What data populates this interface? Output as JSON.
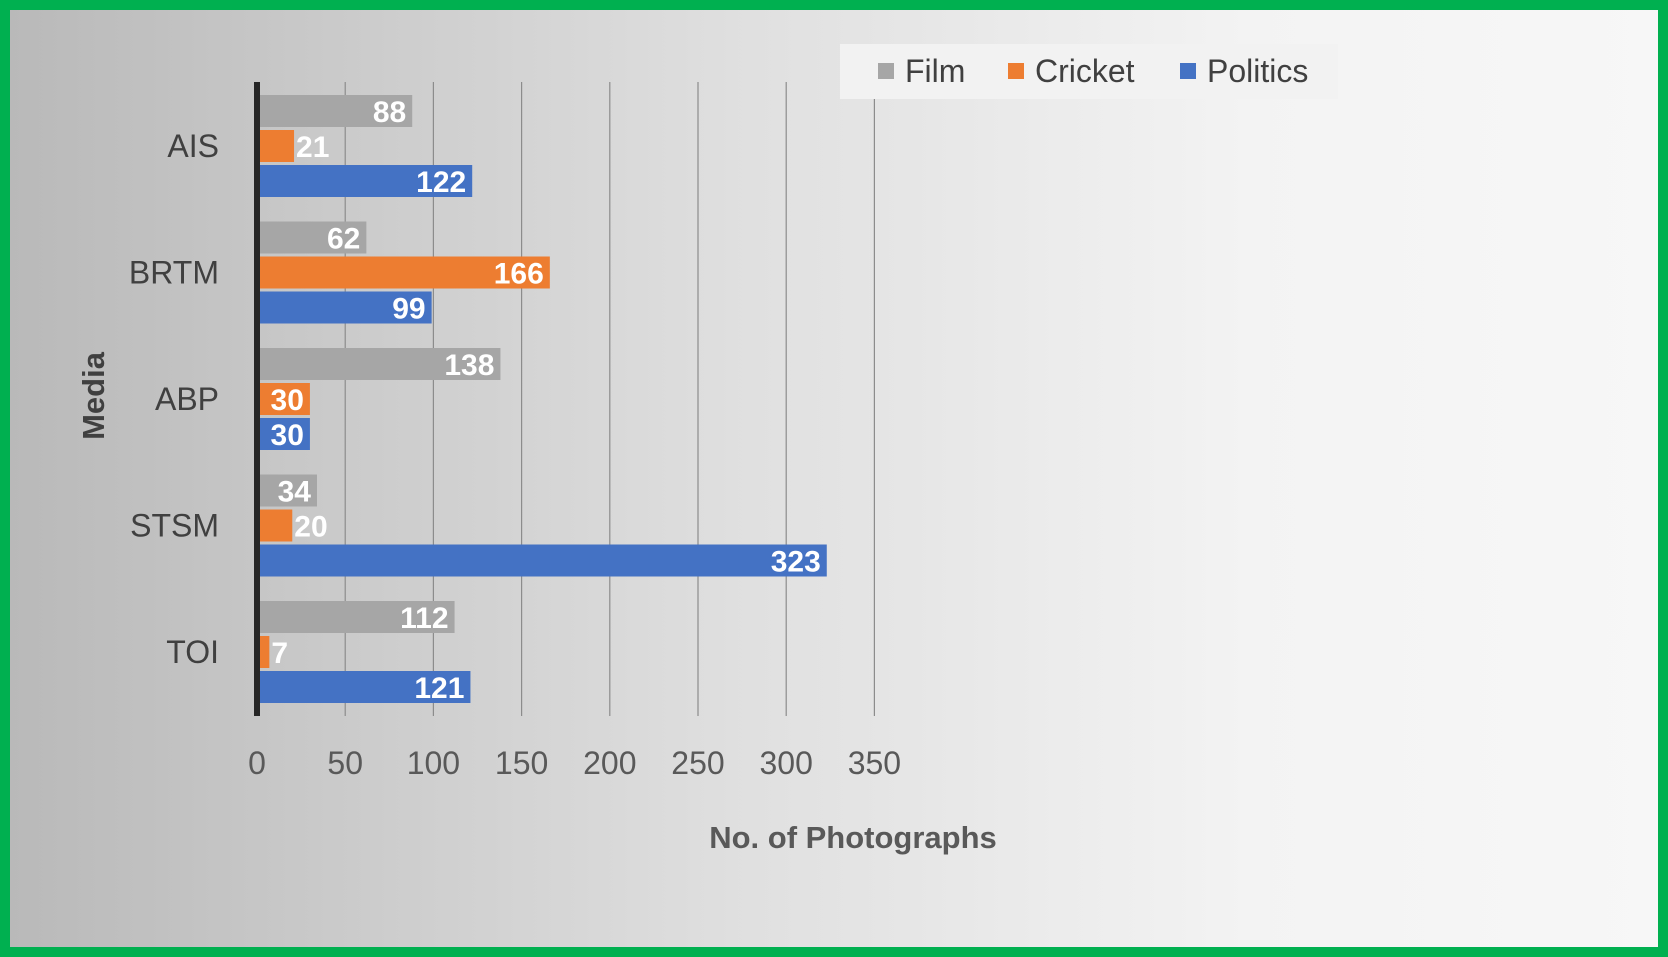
{
  "chart_data": {
    "type": "bar",
    "orientation": "horizontal",
    "categories": [
      "AIS",
      "BRTM",
      "ABP",
      "STSM",
      "TOI"
    ],
    "series": [
      {
        "name": "Film",
        "color": "#a6a6a6",
        "values": [
          88,
          62,
          138,
          34,
          112
        ]
      },
      {
        "name": "Cricket",
        "color": "#ed7d31",
        "values": [
          21,
          166,
          30,
          20,
          7
        ]
      },
      {
        "name": "Politics",
        "color": "#4472c4",
        "values": [
          122,
          99,
          30,
          323,
          121
        ]
      }
    ],
    "xlabel": "No. of Photographs",
    "ylabel": "Media",
    "xlim": [
      0,
      350
    ],
    "x_ticks": [
      "0",
      "50",
      "100",
      "150",
      "200",
      "250",
      "300",
      "350"
    ],
    "grid": "vertical",
    "legend_position": "top-right",
    "data_labels": "inside-end",
    "frame_color": "#00b050"
  }
}
